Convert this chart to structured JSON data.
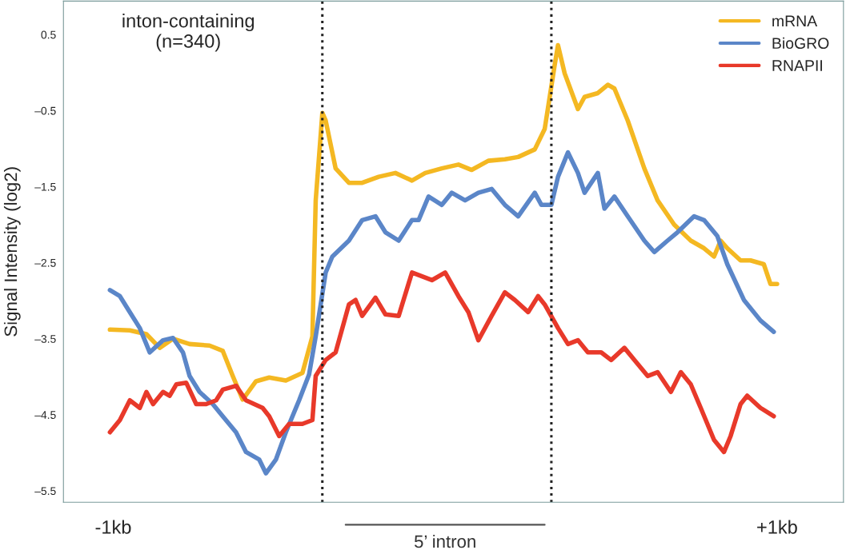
{
  "chart_data": {
    "type": "line",
    "ylabel": "Signal Intensity (log2)",
    "annotations": [
      "inton-containing\n(n=340)",
      "5’ intron"
    ],
    "xlim": [
      -1.15,
      1.2
    ],
    "xticks": [
      {
        "value": -1,
        "label": "-1kb"
      },
      {
        "value": 1,
        "label": "+1kb"
      }
    ],
    "ylim": [
      -5.65,
      0.94
    ],
    "yticks": [
      {
        "value": 0.5,
        "label": "0.5"
      },
      {
        "value": -0.5,
        "label": "–0.5"
      },
      {
        "value": -1.5,
        "label": "–1.5"
      },
      {
        "value": -2.5,
        "label": "–2.5"
      },
      {
        "value": -3.5,
        "label": "–3.5"
      },
      {
        "value": -4.5,
        "label": "–4.5"
      },
      {
        "value": -5.5,
        "label": "–5.5"
      }
    ],
    "grid": false,
    "legend": "top right",
    "marker": "none",
    "line_style": "solid",
    "ref_lines": [
      {
        "axis": "x",
        "value": -0.37,
        "color": "#222222",
        "line_style": "dotted"
      },
      {
        "axis": "x",
        "value": 0.32,
        "color": "#222222",
        "line_style": "dotted"
      }
    ],
    "series": [
      {
        "name": "mRNA",
        "color": "#f4b822",
        "x": [
          -1.01,
          -0.95,
          -0.9,
          -0.86,
          -0.82,
          -0.77,
          -0.71,
          -0.67,
          -0.64,
          -0.61,
          -0.57,
          -0.53,
          -0.48,
          -0.43,
          -0.4,
          -0.39,
          -0.37,
          -0.36,
          -0.33,
          -0.29,
          -0.25,
          -0.2,
          -0.15,
          -0.1,
          -0.06,
          -0.01,
          0.04,
          0.08,
          0.13,
          0.18,
          0.22,
          0.27,
          0.3,
          0.33,
          0.34,
          0.36,
          0.4,
          0.42,
          0.46,
          0.49,
          0.51,
          0.55,
          0.6,
          0.64,
          0.69,
          0.74,
          0.78,
          0.81,
          0.83,
          0.85,
          0.89,
          0.92,
          0.96,
          0.98,
          1.0
        ],
        "values": [
          -3.38,
          -3.39,
          -3.44,
          -3.62,
          -3.5,
          -3.57,
          -3.59,
          -3.66,
          -3.99,
          -4.3,
          -4.06,
          -4.01,
          -4.05,
          -3.95,
          -3.47,
          -1.68,
          -0.53,
          -0.63,
          -1.26,
          -1.45,
          -1.45,
          -1.37,
          -1.32,
          -1.42,
          -1.32,
          -1.26,
          -1.21,
          -1.28,
          -1.16,
          -1.14,
          -1.11,
          -1.01,
          -0.74,
          0.1,
          0.36,
          -0.01,
          -0.48,
          -0.32,
          -0.27,
          -0.16,
          -0.21,
          -0.63,
          -1.26,
          -1.68,
          -2.0,
          -2.21,
          -2.31,
          -2.42,
          -2.21,
          -2.31,
          -2.47,
          -2.47,
          -2.52,
          -2.78,
          -2.78
        ]
      },
      {
        "name": "BioGRO",
        "color": "#5b86c8",
        "x": [
          -1.01,
          -0.98,
          -0.95,
          -0.92,
          -0.89,
          -0.85,
          -0.82,
          -0.79,
          -0.77,
          -0.74,
          -0.7,
          -0.67,
          -0.63,
          -0.6,
          -0.56,
          -0.54,
          -0.51,
          -0.48,
          -0.44,
          -0.41,
          -0.39,
          -0.36,
          -0.34,
          -0.29,
          -0.25,
          -0.21,
          -0.18,
          -0.14,
          -0.1,
          -0.08,
          -0.05,
          -0.01,
          0.02,
          0.06,
          0.1,
          0.14,
          0.18,
          0.22,
          0.27,
          0.29,
          0.32,
          0.34,
          0.37,
          0.4,
          0.42,
          0.46,
          0.48,
          0.51,
          0.55,
          0.6,
          0.63,
          0.67,
          0.7,
          0.75,
          0.78,
          0.82,
          0.85,
          0.9,
          0.95,
          0.99
        ],
        "values": [
          -2.86,
          -2.94,
          -3.15,
          -3.36,
          -3.68,
          -3.52,
          -3.49,
          -3.68,
          -3.99,
          -4.2,
          -4.36,
          -4.52,
          -4.73,
          -4.99,
          -5.09,
          -5.27,
          -5.09,
          -4.73,
          -4.31,
          -3.97,
          -3.47,
          -2.63,
          -2.42,
          -2.21,
          -1.94,
          -1.89,
          -2.1,
          -2.21,
          -1.94,
          -1.94,
          -1.63,
          -1.74,
          -1.58,
          -1.68,
          -1.58,
          -1.53,
          -1.74,
          -1.89,
          -1.58,
          -1.74,
          -1.74,
          -1.37,
          -1.05,
          -1.32,
          -1.58,
          -1.32,
          -1.79,
          -1.63,
          -1.89,
          -2.21,
          -2.36,
          -2.21,
          -2.1,
          -1.89,
          -1.94,
          -2.15,
          -2.52,
          -2.99,
          -3.26,
          -3.41
        ]
      },
      {
        "name": "RNAPII",
        "color": "#e8392a",
        "x": [
          -1.01,
          -0.98,
          -0.95,
          -0.92,
          -0.9,
          -0.88,
          -0.85,
          -0.83,
          -0.81,
          -0.78,
          -0.75,
          -0.72,
          -0.69,
          -0.67,
          -0.63,
          -0.6,
          -0.55,
          -0.53,
          -0.5,
          -0.47,
          -0.43,
          -0.4,
          -0.39,
          -0.36,
          -0.33,
          -0.29,
          -0.27,
          -0.25,
          -0.21,
          -0.18,
          -0.14,
          -0.1,
          -0.07,
          -0.04,
          0.0,
          0.04,
          0.07,
          0.1,
          0.14,
          0.18,
          0.21,
          0.25,
          0.28,
          0.3,
          0.34,
          0.37,
          0.4,
          0.43,
          0.47,
          0.5,
          0.54,
          0.57,
          0.61,
          0.64,
          0.68,
          0.71,
          0.74,
          0.77,
          0.81,
          0.84,
          0.86,
          0.89,
          0.91,
          0.95,
          0.99
        ],
        "values": [
          -4.73,
          -4.57,
          -4.31,
          -4.41,
          -4.2,
          -4.36,
          -4.2,
          -4.25,
          -4.1,
          -4.08,
          -4.36,
          -4.36,
          -4.31,
          -4.17,
          -4.12,
          -4.31,
          -4.41,
          -4.52,
          -4.78,
          -4.62,
          -4.62,
          -4.57,
          -3.99,
          -3.78,
          -3.68,
          -3.05,
          -2.99,
          -3.2,
          -2.96,
          -3.18,
          -3.2,
          -2.63,
          -2.68,
          -2.73,
          -2.63,
          -2.94,
          -3.15,
          -3.52,
          -3.2,
          -2.89,
          -2.99,
          -3.15,
          -2.94,
          -3.05,
          -3.36,
          -3.57,
          -3.52,
          -3.68,
          -3.68,
          -3.78,
          -3.62,
          -3.78,
          -3.99,
          -3.94,
          -4.2,
          -3.94,
          -4.1,
          -4.41,
          -4.83,
          -4.99,
          -4.78,
          -4.36,
          -4.25,
          -4.41,
          -4.52
        ]
      }
    ]
  }
}
